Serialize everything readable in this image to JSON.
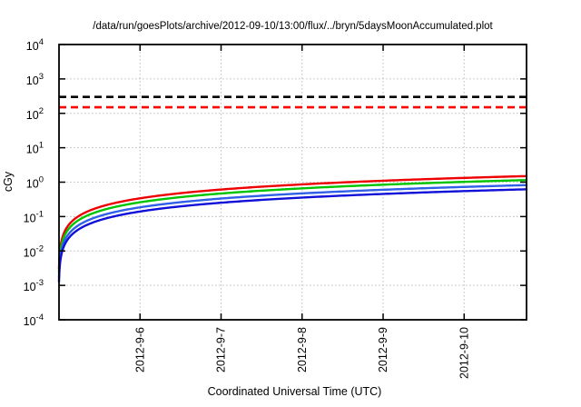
{
  "chart": {
    "title": "/data/run/goesPlots/archive/2012-09-10/13:00/flux/../bryn/5daysMoonAccumulated.plot",
    "ylabel": "cGy",
    "xlabel": "Coordinated Universal Time (UTC)"
  },
  "chart_data": {
    "type": "line",
    "title": "/data/run/goesPlots/archive/2012-09-10/13:00/flux/../bryn/5daysMoonAccumulated.plot",
    "xlabel": "Coordinated Universal Time (UTC)",
    "ylabel": "cGy",
    "y_scale": "log10",
    "ylim": [
      0.0001,
      10000
    ],
    "y_tick_exponents": [
      4,
      3,
      2,
      1,
      0,
      -1,
      -2,
      -3,
      -4
    ],
    "x_ticks": [
      "2012-9-6",
      "2012-9-7",
      "2012-9-8",
      "2012-9-9",
      "2012-9-10"
    ],
    "x_tick_days": [
      1,
      2,
      3,
      4,
      5
    ],
    "x_range_days": [
      0,
      5.77
    ],
    "grid": true,
    "grid_color": "#bdbdbd",
    "legend": "none",
    "reference_lines": [
      {
        "name": "dose-limit-upper",
        "value": 300,
        "color": "#000000",
        "style": "dashed"
      },
      {
        "name": "dose-limit-lower",
        "value": 150,
        "color": "#ff0000",
        "style": "dashed"
      }
    ],
    "series": [
      {
        "name": "accumulated-dose-red",
        "color": "#ee0000",
        "start_value": 0.003,
        "end_value": 1.5,
        "values_at_ticks": [
          0.34,
          0.61,
          0.86,
          1.1,
          1.33
        ]
      },
      {
        "name": "accumulated-dose-green",
        "color": "#00c400",
        "start_value": 0.0024,
        "end_value": 1.15,
        "values_at_ticks": [
          0.26,
          0.47,
          0.66,
          0.84,
          1.02
        ]
      },
      {
        "name": "accumulated-dose-blue-light",
        "color": "#3060e8",
        "start_value": 0.0017,
        "end_value": 0.82,
        "values_at_ticks": [
          0.19,
          0.33,
          0.47,
          0.6,
          0.73
        ]
      },
      {
        "name": "accumulated-dose-blue-dark",
        "color": "#1010d8",
        "start_value": 0.0013,
        "end_value": 0.62,
        "values_at_ticks": [
          0.14,
          0.25,
          0.36,
          0.45,
          0.55
        ]
      }
    ],
    "model": {
      "type": "power_accumulation",
      "exponent": 0.85,
      "epsilon_days": 0.004,
      "total_days": 5.77
    }
  }
}
